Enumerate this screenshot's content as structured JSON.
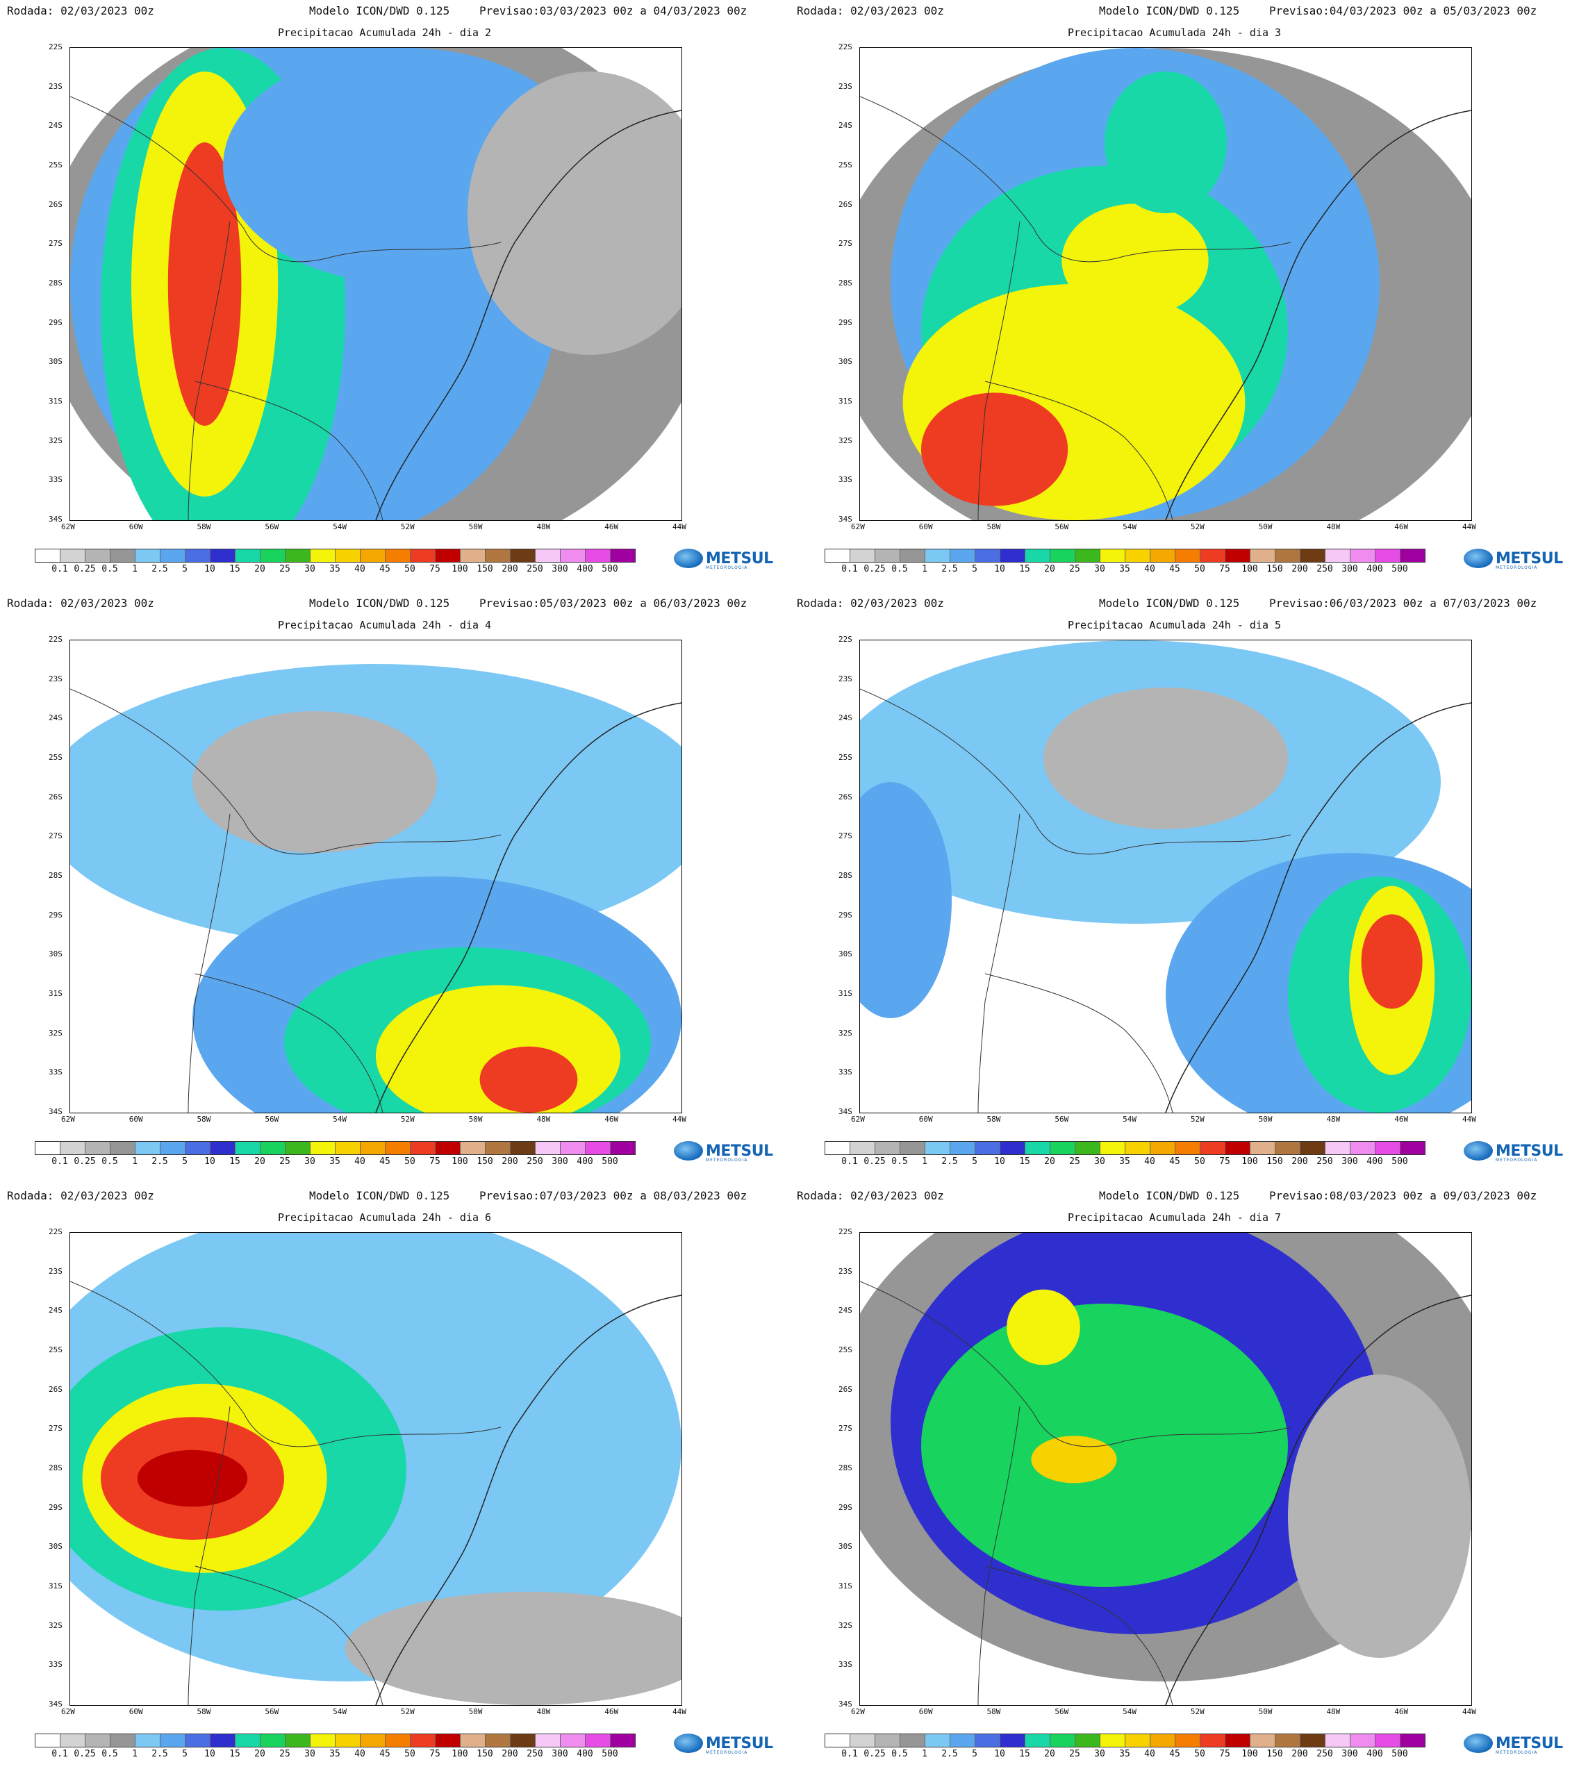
{
  "common": {
    "run_label": "Rodada:",
    "run_value": "02/03/2023 00z",
    "model_label": "Modelo",
    "model_value": "ICON/DWD 0.125",
    "forecast_label": "Previsao:",
    "lat_ticks": [
      "22S",
      "23S",
      "24S",
      "25S",
      "26S",
      "27S",
      "28S",
      "29S",
      "30S",
      "31S",
      "32S",
      "33S",
      "34S"
    ],
    "lon_ticks": [
      "62W",
      "60W",
      "58W",
      "56W",
      "54W",
      "52W",
      "50W",
      "48W",
      "46W",
      "44W"
    ],
    "colorbar_labels": [
      "0.1",
      "0.25",
      "0.5",
      "1",
      "2.5",
      "5",
      "10",
      "15",
      "20",
      "25",
      "30",
      "35",
      "40",
      "45",
      "50",
      "75",
      "100",
      "150",
      "200",
      "250",
      "300",
      "400",
      "500"
    ],
    "colorbar_colors": [
      "#ffffff",
      "#d3d3d3",
      "#b4b4b4",
      "#969696",
      "#7cc8f5",
      "#5aa7f0",
      "#4a6fe3",
      "#2f2fcf",
      "#18d8a8",
      "#18d35e",
      "#3cb81e",
      "#f4f40a",
      "#f7d200",
      "#f5a800",
      "#f57e00",
      "#ee3c22",
      "#c00000",
      "#e0b08a",
      "#b07840",
      "#6e3c14",
      "#f6c8f6",
      "#f08cf0",
      "#e64ce6",
      "#a000a0"
    ],
    "logo_text": "METSUL",
    "logo_sub": "METEOROLOGIA"
  },
  "panels": [
    {
      "title": "Precipitacao Acumulada 24h - dia 2",
      "forecast": "03/03/2023 00z a 04/03/2023 00z"
    },
    {
      "title": "Precipitacao Acumulada 24h - dia 3",
      "forecast": "04/03/2023 00z a 05/03/2023 00z"
    },
    {
      "title": "Precipitacao Acumulada 24h - dia 4",
      "forecast": "05/03/2023 00z a 06/03/2023 00z"
    },
    {
      "title": "Precipitacao Acumulada 24h - dia 5",
      "forecast": "06/03/2023 00z a 07/03/2023 00z"
    },
    {
      "title": "Precipitacao Acumulada 24h - dia 6",
      "forecast": "07/03/2023 00z a 08/03/2023 00z"
    },
    {
      "title": "Precipitacao Acumulada 24h - dia 7",
      "forecast": "08/03/2023 00z a 09/03/2023 00z"
    }
  ]
}
